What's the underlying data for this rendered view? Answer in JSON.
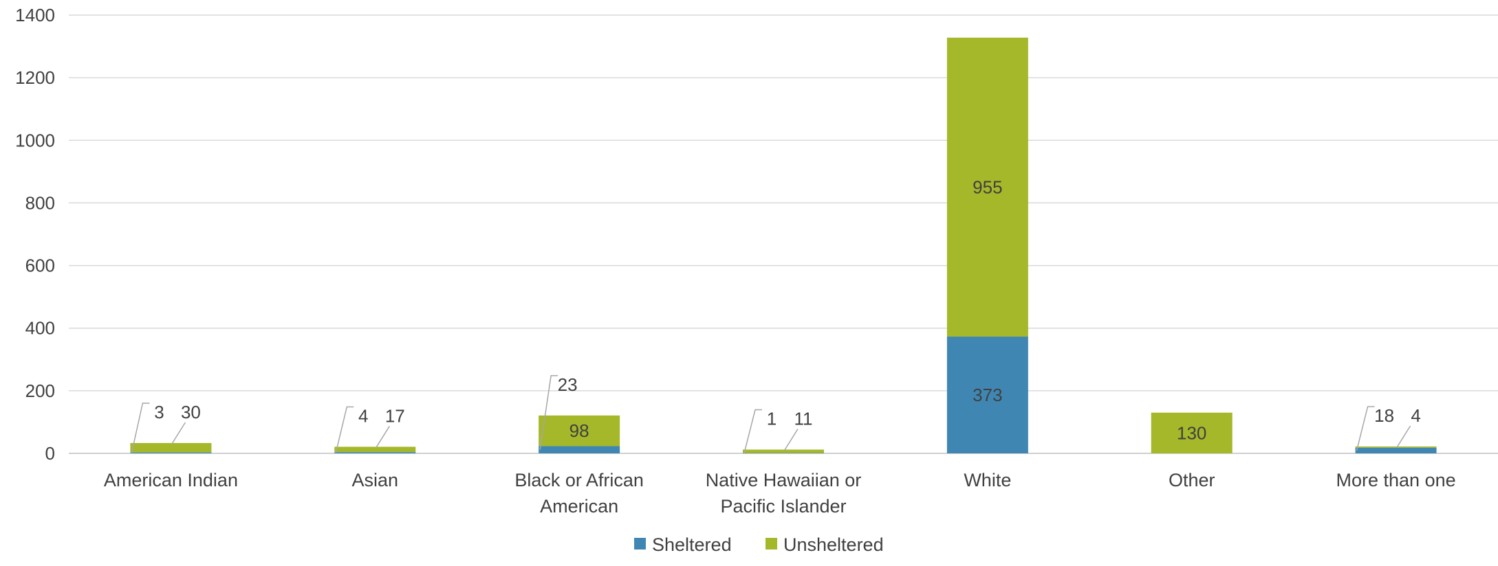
{
  "chart_data": {
    "type": "bar",
    "stacked": true,
    "title": "",
    "xlabel": "",
    "ylabel": "",
    "ylim": [
      0,
      1400
    ],
    "y_ticks": [
      "0",
      "200",
      "400",
      "600",
      "800",
      "1000",
      "1200",
      "1400"
    ],
    "grid": true,
    "legend_position": "bottom",
    "categories": [
      "American Indian",
      "Asian",
      "Black or African American",
      "Native Hawaiian or Pacific Islander",
      "White",
      "Other",
      "More than one"
    ],
    "category_labels": [
      [
        "American Indian"
      ],
      [
        "Asian"
      ],
      [
        "Black or African",
        "American"
      ],
      [
        "Native Hawaiian or",
        "Pacific Islander"
      ],
      [
        "White"
      ],
      [
        "Other"
      ],
      [
        "More than one"
      ]
    ],
    "series": [
      {
        "name": "Sheltered",
        "color": "#3f87b2",
        "values": [
          3,
          4,
          23,
          1,
          373,
          0,
          18
        ],
        "labels": [
          "3",
          "4",
          "23",
          "1",
          "373",
          "",
          "18"
        ]
      },
      {
        "name": "Unsheltered",
        "color": "#a5b82a",
        "values": [
          30,
          17,
          98,
          11,
          955,
          130,
          4
        ],
        "labels": [
          "30",
          "17",
          "98",
          "11",
          "955",
          "130",
          "4"
        ]
      }
    ]
  }
}
